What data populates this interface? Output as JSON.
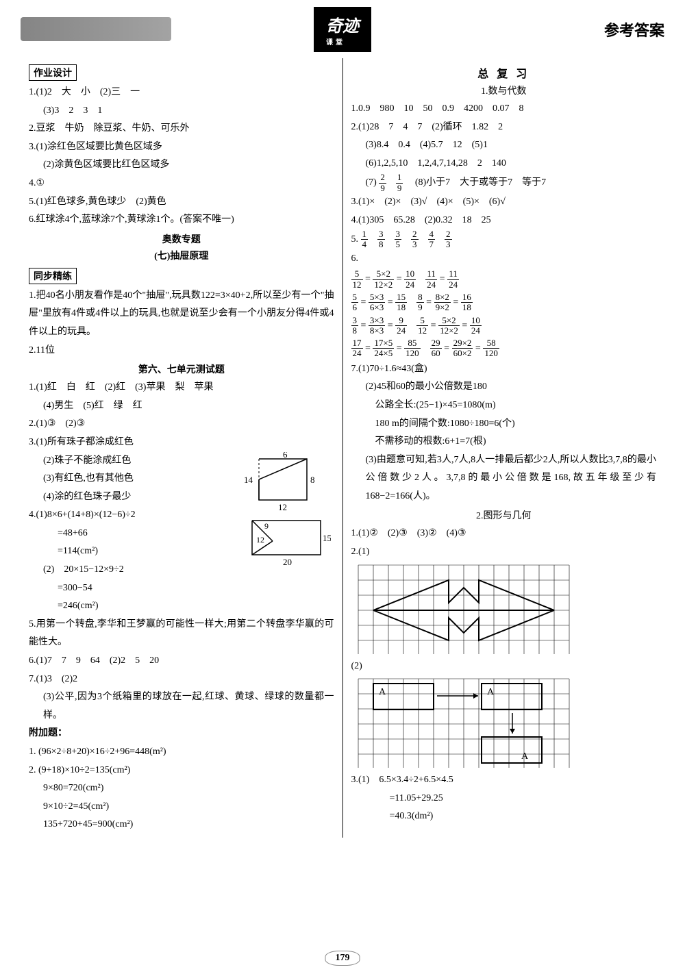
{
  "header": {
    "logo": "奇迹",
    "logo_sub": "课堂",
    "title": "参考答案"
  },
  "pagenum": "179",
  "left": {
    "box1": "作业设计",
    "l1": "1.(1)2　大　小　(2)三　一",
    "l1b": "(3)3　2　3　1",
    "l2": "2.豆浆　牛奶　除豆浆、牛奶、可乐外",
    "l3a": "3.(1)涂红色区域要比黄色区域多",
    "l3b": "(2)涂黄色区域要比红色区域多",
    "l4": "4.①",
    "l5": "5.(1)红色球多,黄色球少　(2)黄色",
    "l6": "6.红球涂4个,蓝球涂7个,黄球涂1个。(答案不唯一)",
    "sec1": "奥数专题",
    "sec1b": "(七)抽屉原理",
    "box2": "同步精练",
    "l7": "1.把40名小朋友看作是40个\"抽屉\",玩具数122=3×40+2,所以至少有一个\"抽屉\"里放有4件或4件以上的玩具,也就是说至少会有一个小朋友分得4件或4件以上的玩具。",
    "l8": "2.11位",
    "sec2": "第六、七单元测试题",
    "t1": "1.(1)红　白　红　(2)红　(3)苹果　梨　苹果",
    "t1b": "(4)男生　(5)红　绿　红",
    "t2": "2.(1)③　(2)③",
    "t3a": "3.(1)所有珠子都涂成红色",
    "t3b": "(2)珠子不能涂成红色",
    "t3c": "(3)有红色,也有其他色",
    "t3d": "(4)涂的红色珠子最少",
    "t4a": "4.(1)8×6+(14+8)×(12−6)÷2",
    "t4b": "=48+66",
    "t4c": "=114(cm²)",
    "t4d": "(2)　20×15−12×9÷2",
    "t4e": "=300−54",
    "t4f": "=246(cm²)",
    "t5": "5.用第一个转盘,李华和王梦赢的可能性一样大;用第二个转盘李华赢的可能性大。",
    "t6": "6.(1)7　7　9　64　(2)2　5　20",
    "t7a": "7.(1)3　(2)2",
    "t7b": "(3)公平,因为3个纸箱里的球放在一起,红球、黄球、绿球的数量都一样。",
    "add": "附加题：",
    "a1": "1. (96×2÷8+20)×16÷2+96=448(m²)",
    "a2": "2. (9+18)×10÷2=135(cm²)",
    "a2b": "9×80=720(cm²)",
    "a2c": "9×10÷2=45(cm²)",
    "a2d": "135+720+45=900(cm²)",
    "fig1": {
      "labels": [
        "6",
        "14",
        "8",
        "12"
      ]
    },
    "fig2": {
      "labels": [
        "9",
        "12",
        "15",
        "20"
      ]
    }
  },
  "right": {
    "title": "总 复 习",
    "sub": "1.数与代数",
    "r1": "1.0.9　980　10　50　0.9　4200　0.07　8",
    "r2a": "2.(1)28　7　4　7　(2)循环　1.82　2",
    "r2b": "(3)8.4　0.4　(4)5.7　12　(5)1",
    "r2c": "(6)1,2,5,10　1,2,4,7,14,28　2　140",
    "r2d_pre": "(7)",
    "r2d_post": "　(8)小于7　大于或等于7　等于7",
    "r3": "3.(1)×　(2)×　(3)√　(4)×　(5)×　(6)√",
    "r4": "4.(1)305　65.28　(2)0.32　18　25",
    "r5_label": "5.",
    "r6_label": "6.",
    "r7a": "7.(1)70÷1.6≈43(盒)",
    "r7b": "(2)45和60的最小公倍数是180",
    "r7c": "公路全长:(25−1)×45=1080(m)",
    "r7d": "180 m的间隔个数:1080÷180=6(个)",
    "r7e": "不需移动的根数:6+1=7(根)",
    "r7f": "(3)由题意可知,若3人,7人,8人一排最后都少2人,所以人数比3,7,8的最小公倍数少2人。3,7,8的最小公倍数是168,故五年级至少有168−2=166(人)。",
    "sub2": "2.图形与几何",
    "g1": "1.(1)②　(2)③　(3)②　(4)③",
    "g2": "2.(1)",
    "g2b": "(2)",
    "g3a": "3.(1)　6.5×3.4÷2+6.5×4.5",
    "g3b": "=11.05+29.25",
    "g3c": "=40.3(dm²)",
    "fracs5": [
      [
        "1",
        "4"
      ],
      [
        "3",
        "8"
      ],
      [
        "3",
        "5"
      ],
      [
        "2",
        "3"
      ],
      [
        "4",
        "7"
      ],
      [
        "2",
        "3"
      ]
    ],
    "fracs27": [
      [
        "2",
        "9"
      ],
      [
        "1",
        "9"
      ]
    ],
    "grid": {
      "cols": 14,
      "rows": 6,
      "a_label": "A"
    }
  }
}
